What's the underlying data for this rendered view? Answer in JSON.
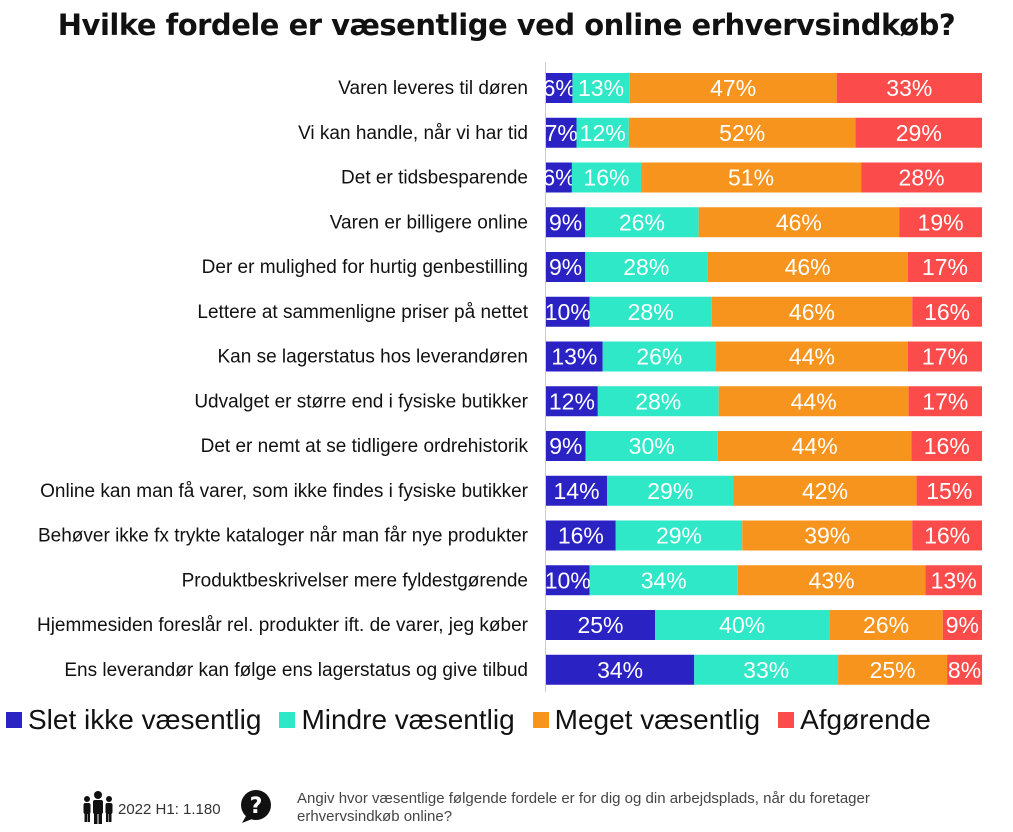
{
  "chart_data": {
    "type": "bar",
    "orientation": "horizontal",
    "stacked": true,
    "title": "Hvilke fordele er væsentlige ved online erhvervsindkøb?",
    "categories": [
      "Varen leveres til døren",
      "Vi kan handle, når vi har tid",
      "Det er tidsbesparende",
      "Varen er billigere online",
      "Der er mulighed for hurtig genbestilling",
      "Lettere at sammenligne priser på nettet",
      "Kan se lagerstatus hos leverandøren",
      "Udvalget er større end i fysiske butikker",
      "Det er nemt at se tidligere ordrehistorik",
      "Online kan man få varer, som ikke findes i fysiske butikker",
      "Behøver ikke fx trykte kataloger når man får nye produkter",
      "Produktbeskrivelser mere fyldestgørende",
      "Hjemmesiden foreslår rel. produkter ift. de varer, jeg køber",
      "Ens leverandør kan følge ens lagerstatus og give tilbud"
    ],
    "series": [
      {
        "name": "Slet ikke væsentlig",
        "color": "#2b22c4",
        "values": [
          6,
          7,
          6,
          9,
          9,
          10,
          13,
          12,
          9,
          14,
          16,
          10,
          25,
          34
        ]
      },
      {
        "name": "Mindre væsentlig",
        "color": "#2ee8c8",
        "values": [
          13,
          12,
          16,
          26,
          28,
          28,
          26,
          28,
          30,
          29,
          29,
          34,
          40,
          33
        ]
      },
      {
        "name": "Meget væsentlig",
        "color": "#f7941d",
        "values": [
          47,
          52,
          51,
          46,
          46,
          46,
          44,
          44,
          44,
          42,
          39,
          43,
          26,
          25
        ]
      },
      {
        "name": "Afgørende",
        "color": "#fb4b4b",
        "values": [
          33,
          29,
          28,
          19,
          17,
          16,
          17,
          17,
          16,
          15,
          16,
          13,
          9,
          8
        ]
      }
    ],
    "value_suffix": "%",
    "legend_position": "bottom-left",
    "grid": false
  },
  "footer": {
    "sample": "2022 H1: 1.180",
    "note": "Angiv hvor væsentlige følgende fordele er for dig og din arbejdsplads, når du foretager erhvervsindkøb online?",
    "people_icon": "people-icon",
    "question_icon": "question-icon"
  }
}
